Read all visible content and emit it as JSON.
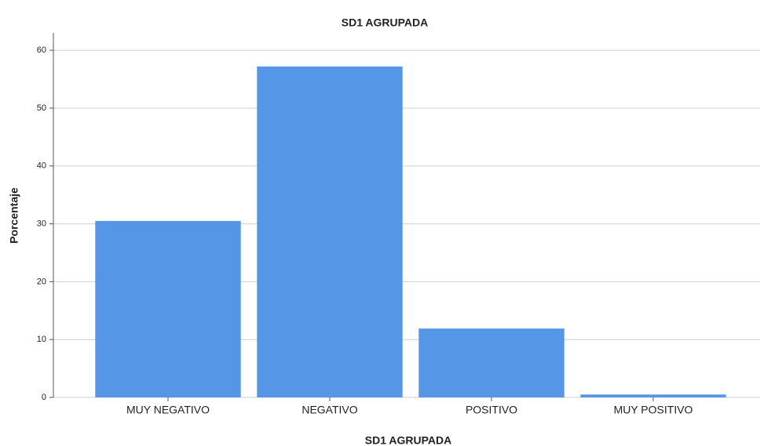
{
  "chart_data": {
    "type": "bar",
    "title": "SD1 AGRUPADA",
    "x_label": "SD1 AGRUPADA",
    "y_label": "Porcentaje",
    "categories": [
      "MUY NEGATIVO",
      "NEGATIVO",
      "POSITIVO",
      "MUY POSITIVO"
    ],
    "values": [
      30.5,
      57.2,
      11.9,
      0.5
    ],
    "color": "#5596e6",
    "ylim": [
      0,
      63
    ],
    "yticks": [
      0,
      10,
      20,
      30,
      40,
      50,
      60
    ],
    "grid": true
  }
}
